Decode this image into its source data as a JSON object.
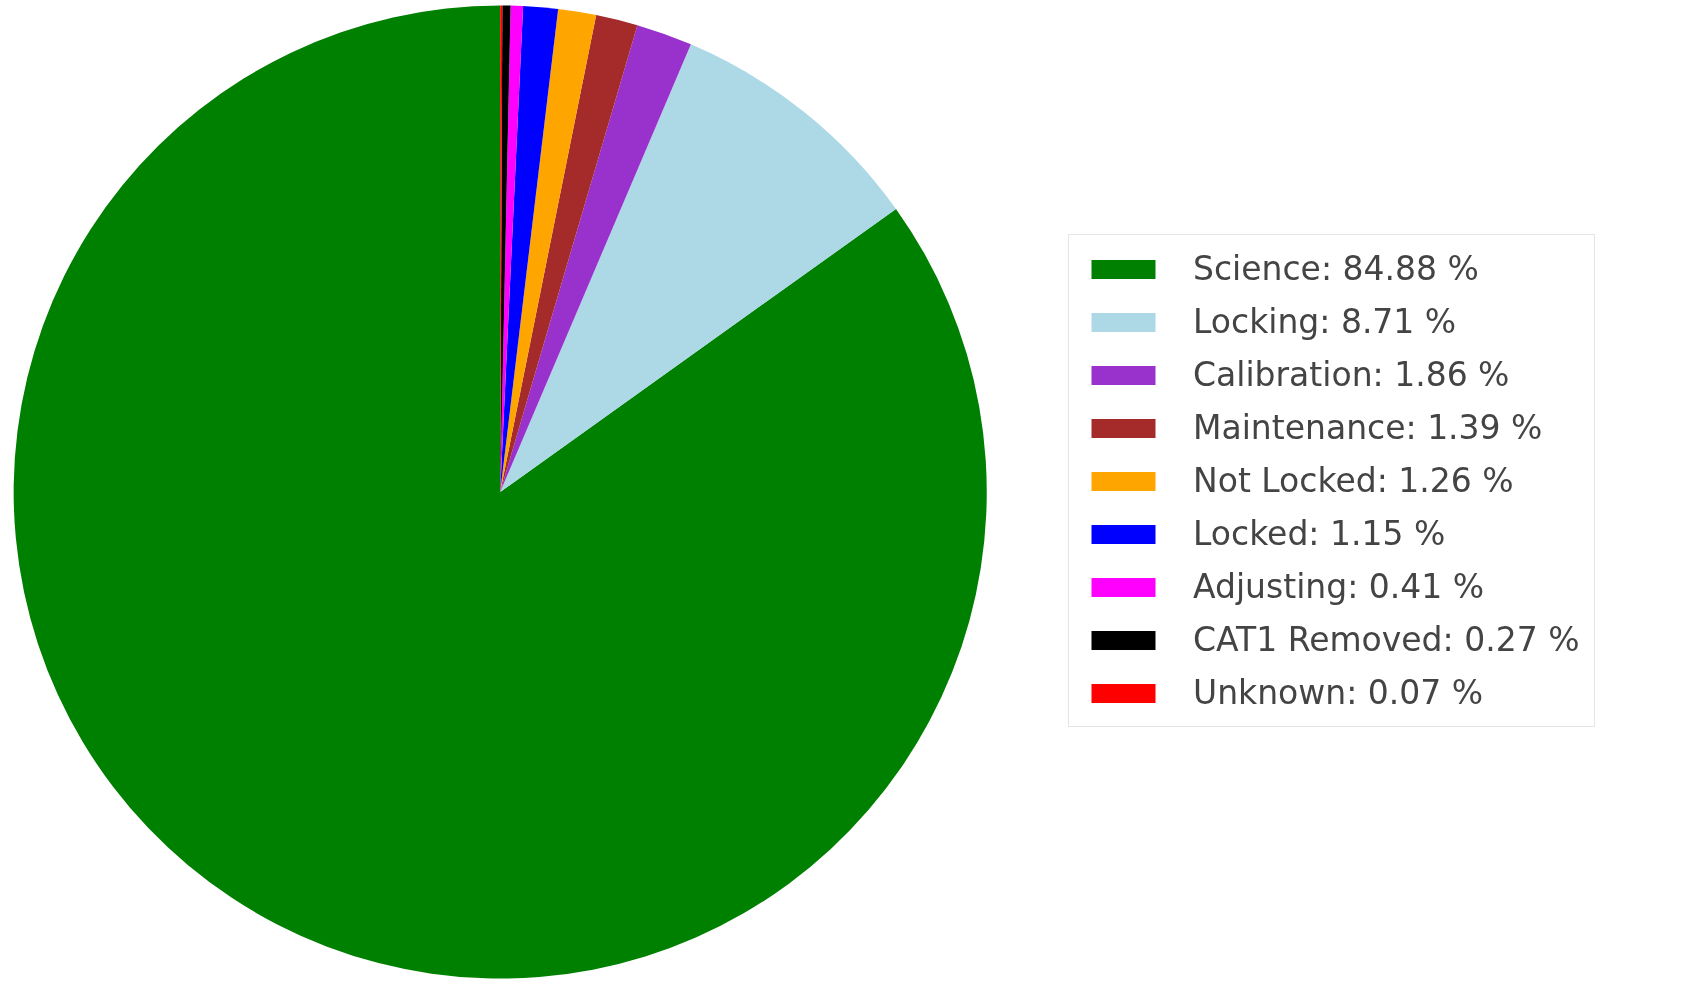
{
  "chart_data": {
    "type": "pie",
    "categories": [
      "Science: 84.88 %",
      "Locking: 8.71 %",
      "Calibration: 1.86 %",
      "Maintenance: 1.39 %",
      "Not Locked: 1.26 %",
      "Locked: 1.15 %",
      "Adjusting: 0.41 %",
      "CAT1 Removed: 0.27 %",
      "Unknown: 0.07 %"
    ],
    "values": [
      84.88,
      8.71,
      1.86,
      1.39,
      1.26,
      1.15,
      0.41,
      0.27,
      0.07
    ],
    "colors": [
      "#008000",
      "#add8e6",
      "#9932cc",
      "#a52a2a",
      "#ffa500",
      "#0000ff",
      "#ff00ff",
      "#000000",
      "#ff0000"
    ],
    "legend": "right"
  }
}
